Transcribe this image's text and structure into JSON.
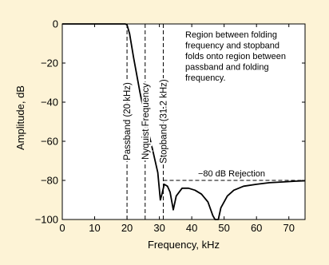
{
  "chart_data": {
    "type": "line",
    "title": "",
    "xlabel": "Frequency, kHz",
    "ylabel": "Amplitude, dB",
    "xlim": [
      0,
      75
    ],
    "ylim": [
      -100,
      0
    ],
    "x_ticks": [
      0,
      10,
      20,
      30,
      40,
      50,
      60,
      70
    ],
    "y_ticks": [
      0,
      -20,
      -40,
      -60,
      -80,
      -100
    ],
    "x_tick_labels": [
      "0",
      "10",
      "20",
      "30",
      "40",
      "50",
      "60",
      "70"
    ],
    "y_tick_labels": [
      "0",
      "−20",
      "−40",
      "−60",
      "−80",
      "−100"
    ],
    "grid": false,
    "series": [
      {
        "color": "#000000",
        "points": [
          [
            0,
            0
          ],
          [
            19.5,
            0
          ],
          [
            20,
            -0.5
          ],
          [
            20.8,
            -5
          ],
          [
            22,
            -17
          ],
          [
            24,
            -35
          ],
          [
            26,
            -51
          ],
          [
            28,
            -65
          ],
          [
            29.5,
            -76
          ],
          [
            30.3,
            -90
          ],
          [
            30.8,
            -87
          ],
          [
            31.5,
            -82
          ],
          [
            32.5,
            -83
          ],
          [
            33.3,
            -86
          ],
          [
            34.3,
            -95
          ],
          [
            35.2,
            -88
          ],
          [
            37,
            -84
          ],
          [
            39,
            -84
          ],
          [
            41,
            -85
          ],
          [
            43,
            -87
          ],
          [
            45,
            -91
          ],
          [
            46.5,
            -98
          ],
          [
            47.2,
            -100
          ],
          [
            48.2,
            -100
          ],
          [
            49,
            -94
          ],
          [
            51,
            -88
          ],
          [
            53,
            -85
          ],
          [
            56,
            -83
          ],
          [
            60,
            -82
          ],
          [
            64,
            -81.2
          ],
          [
            68,
            -80.8
          ],
          [
            72,
            -80.4
          ],
          [
            75,
            -80.2
          ]
        ]
      }
    ],
    "vertical_markers": [
      {
        "x": 20,
        "label": "Passband (20 kHz)"
      },
      {
        "x": 25.6,
        "label": "Nyquist Frequency"
      },
      {
        "x": 31.2,
        "label": "Stopband (31.2 kHz)"
      }
    ],
    "horizontal_marker": {
      "y": -80,
      "x_start": 31.2,
      "x_end": 75,
      "label": "−80 dB Rejection"
    },
    "annotation_lines": [
      "Region between folding",
      "frequency and stopband",
      "folds onto region between",
      "passband and folding",
      "frequency."
    ]
  }
}
